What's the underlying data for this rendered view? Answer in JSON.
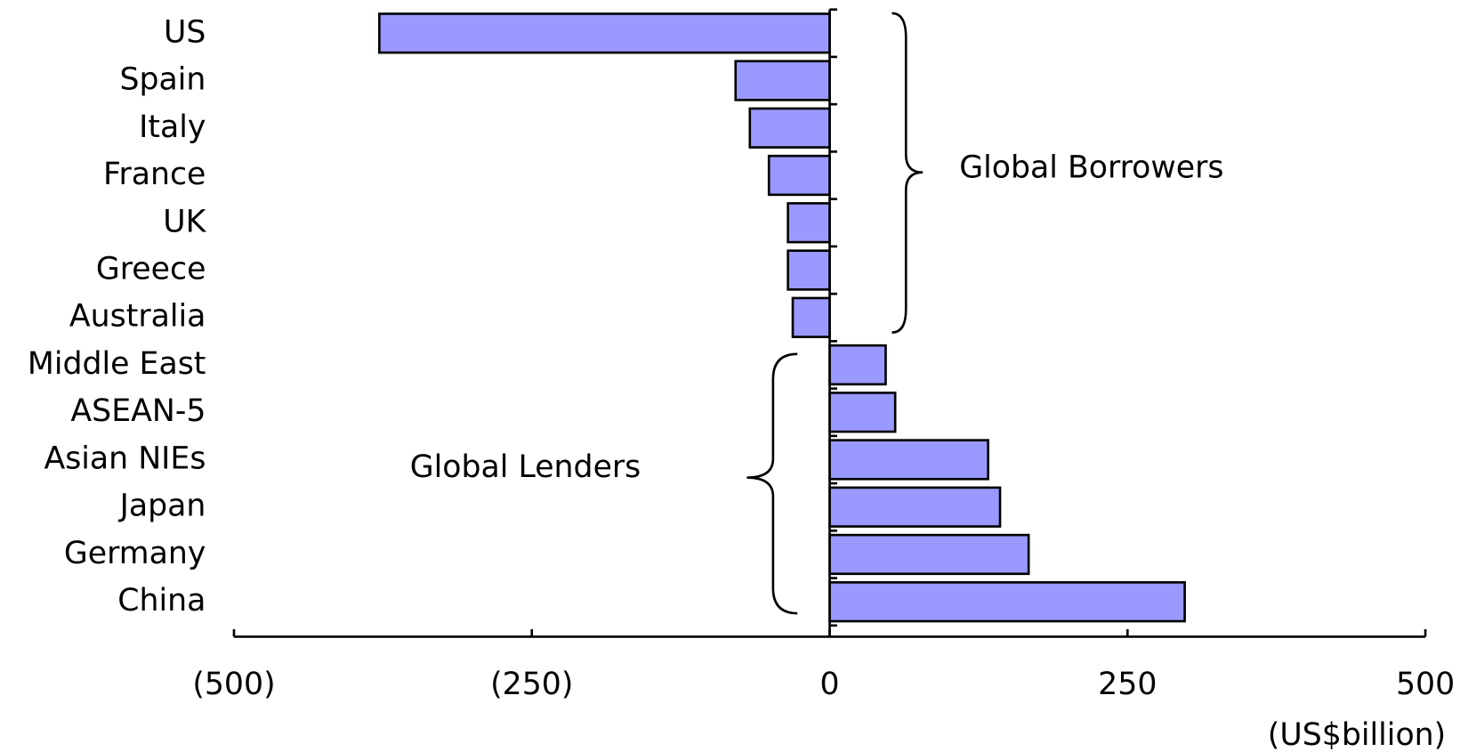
{
  "chart_data": {
    "type": "bar",
    "orientation": "horizontal",
    "categories": [
      "US",
      "Spain",
      "Italy",
      "France",
      "UK",
      "Greece",
      "Australia",
      "Middle East",
      "ASEAN-5",
      "Asian NIEs",
      "Japan",
      "Germany",
      "China"
    ],
    "values": [
      -378,
      -79,
      -67,
      -51,
      -35,
      -35,
      -31,
      47,
      55,
      133,
      143,
      167,
      298
    ],
    "color": "#9999ff",
    "xlim": [
      -500,
      500
    ],
    "xticks": [
      {
        "value": -500,
        "label": "(500)"
      },
      {
        "value": -250,
        "label": "(250)"
      },
      0,
      250,
      500
    ],
    "x_axis_label": "(US$billion)",
    "annotations": [
      "Global Borrowers",
      "Global Lenders"
    ]
  }
}
